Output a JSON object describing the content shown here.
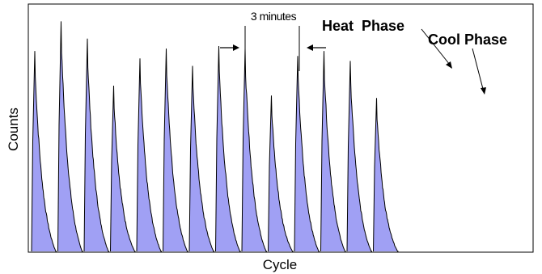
{
  "chart_data": {
    "type": "area",
    "title": "",
    "xlabel": "Cycle",
    "ylabel": "Counts",
    "grid": false,
    "legend": "none",
    "x_ticks": false,
    "y_ticks": false,
    "ylim": [
      0,
      1
    ],
    "fill_color": "#a0a0f4",
    "line_color": "#000000",
    "peaks": [
      {
        "cycle": 1,
        "peak": 0.81
      },
      {
        "cycle": 2,
        "peak": 0.93
      },
      {
        "cycle": 3,
        "peak": 0.86
      },
      {
        "cycle": 4,
        "peak": 0.67
      },
      {
        "cycle": 5,
        "peak": 0.78
      },
      {
        "cycle": 6,
        "peak": 0.82
      },
      {
        "cycle": 7,
        "peak": 0.75
      },
      {
        "cycle": 8,
        "peak": 0.83
      },
      {
        "cycle": 9,
        "peak": 0.82
      },
      {
        "cycle": 10,
        "peak": 0.63
      },
      {
        "cycle": 11,
        "peak": 0.79
      },
      {
        "cycle": 12,
        "peak": 0.81
      },
      {
        "cycle": 13,
        "peak": 0.77
      },
      {
        "cycle": 14,
        "peak": 0.62
      }
    ],
    "annotations": {
      "interval": "3 minutes",
      "heat": "Heat  Phase",
      "cool": "Cool Phase"
    }
  }
}
